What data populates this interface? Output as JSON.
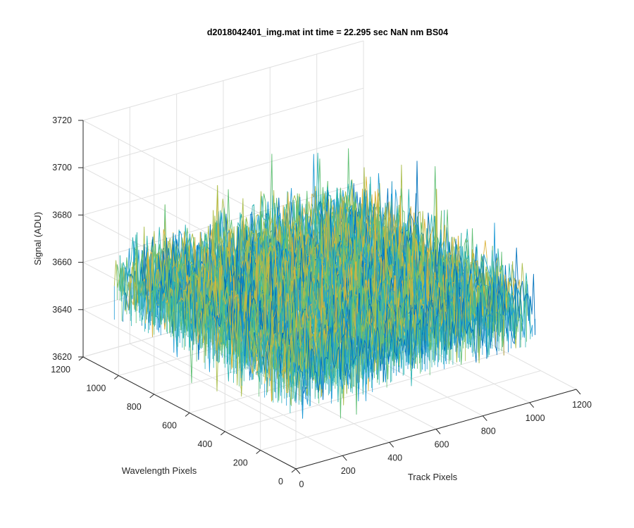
{
  "chart_data": {
    "type": "surface",
    "title": "d2018042401_img.mat int time = 22.295 sec  NaN nm BS04",
    "xlabel": "Track Pixels",
    "ylabel": "Wavelength Pixels",
    "zlabel": "Signal (ADU)",
    "xlim": [
      0,
      1200
    ],
    "ylim": [
      0,
      1200
    ],
    "zlim": [
      3620,
      3720
    ],
    "x_ticks": [
      "0",
      "200",
      "400",
      "600",
      "800",
      "1000",
      "1200"
    ],
    "y_ticks": [
      "0",
      "200",
      "400",
      "600",
      "800",
      "1000",
      "1200"
    ],
    "z_ticks": [
      "3620",
      "3640",
      "3660",
      "3680",
      "3700",
      "3720"
    ],
    "grid": true,
    "data_extent": {
      "x": [
        0,
        1024
      ],
      "y": [
        0,
        1024
      ]
    },
    "signal": {
      "mean": 3662,
      "typical_min": 3640,
      "typical_max": 3690,
      "noise": "random per-pixel readout noise"
    },
    "colormap": [
      "#0072bd",
      "#1e9ad6",
      "#2bb3b3",
      "#5fbf73",
      "#a9bd4a",
      "#dbb33a"
    ]
  }
}
